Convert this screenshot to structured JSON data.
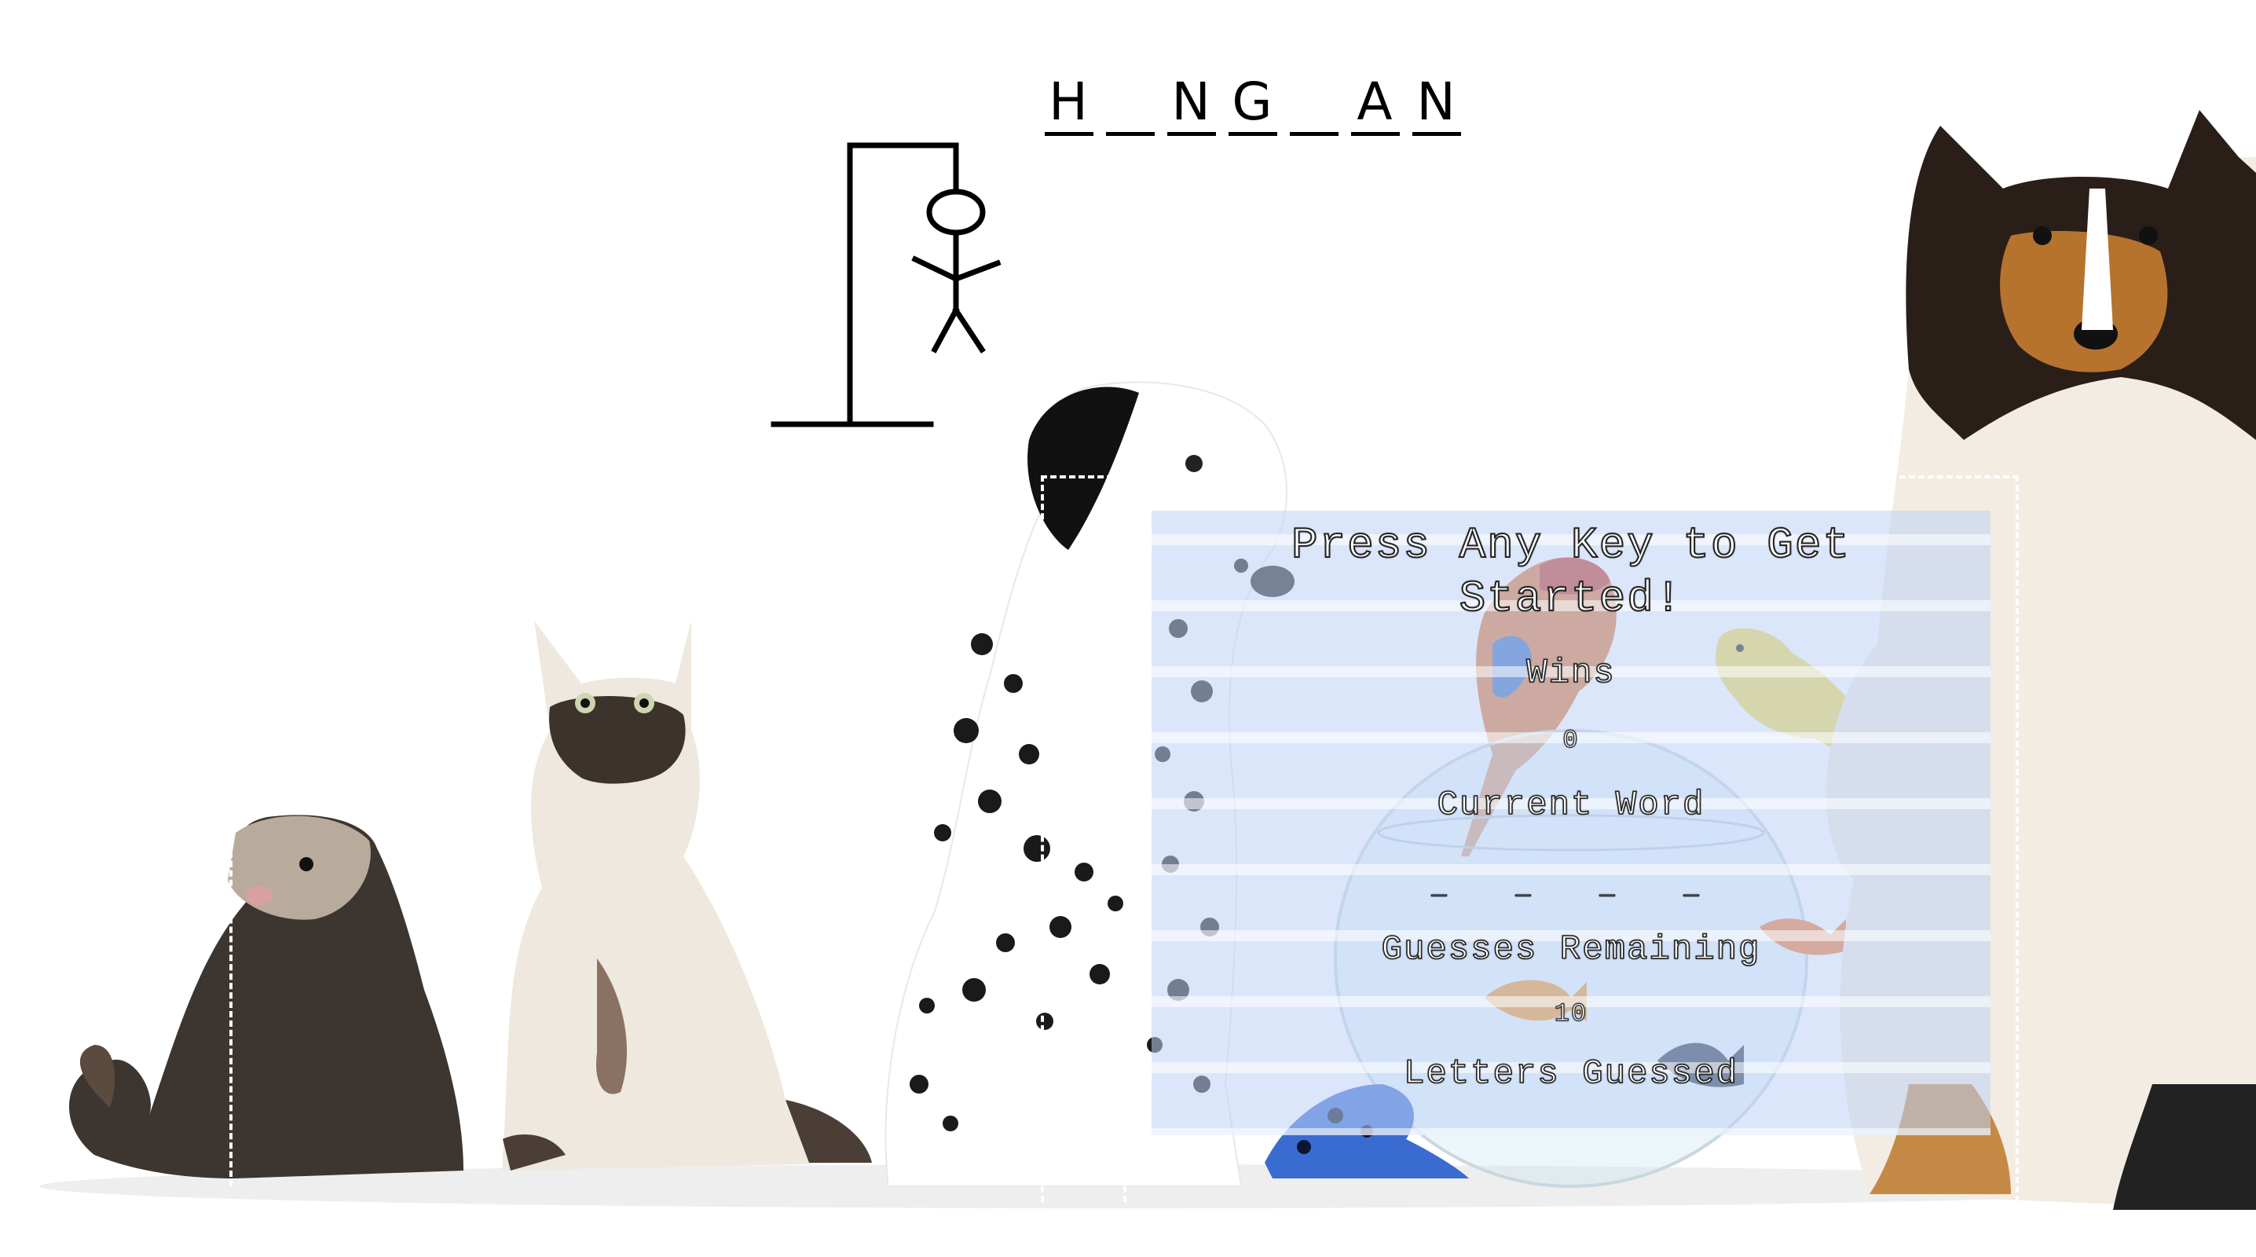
{
  "logo": {
    "letters": [
      "H",
      "N",
      "G",
      "A",
      "N"
    ]
  },
  "panel": {
    "title": "Press Any Key to Get Started!",
    "wins_label": "Wins",
    "wins_value": "0",
    "current_word_label": "Current Word",
    "current_word_letters": [
      "_",
      "_",
      "_",
      "_"
    ],
    "guesses_label": "Guesses Remaining",
    "guesses_value": "10",
    "letters_guessed_label": "Letters Guessed",
    "letters_guessed_value": ""
  },
  "colors": {
    "panel_bg": "#bed2f5",
    "text_fill": "#ffffff",
    "text_stroke": "#222222"
  },
  "icons": {
    "gallows": "hangman-gallows-icon",
    "background": "pet-group-photo"
  }
}
